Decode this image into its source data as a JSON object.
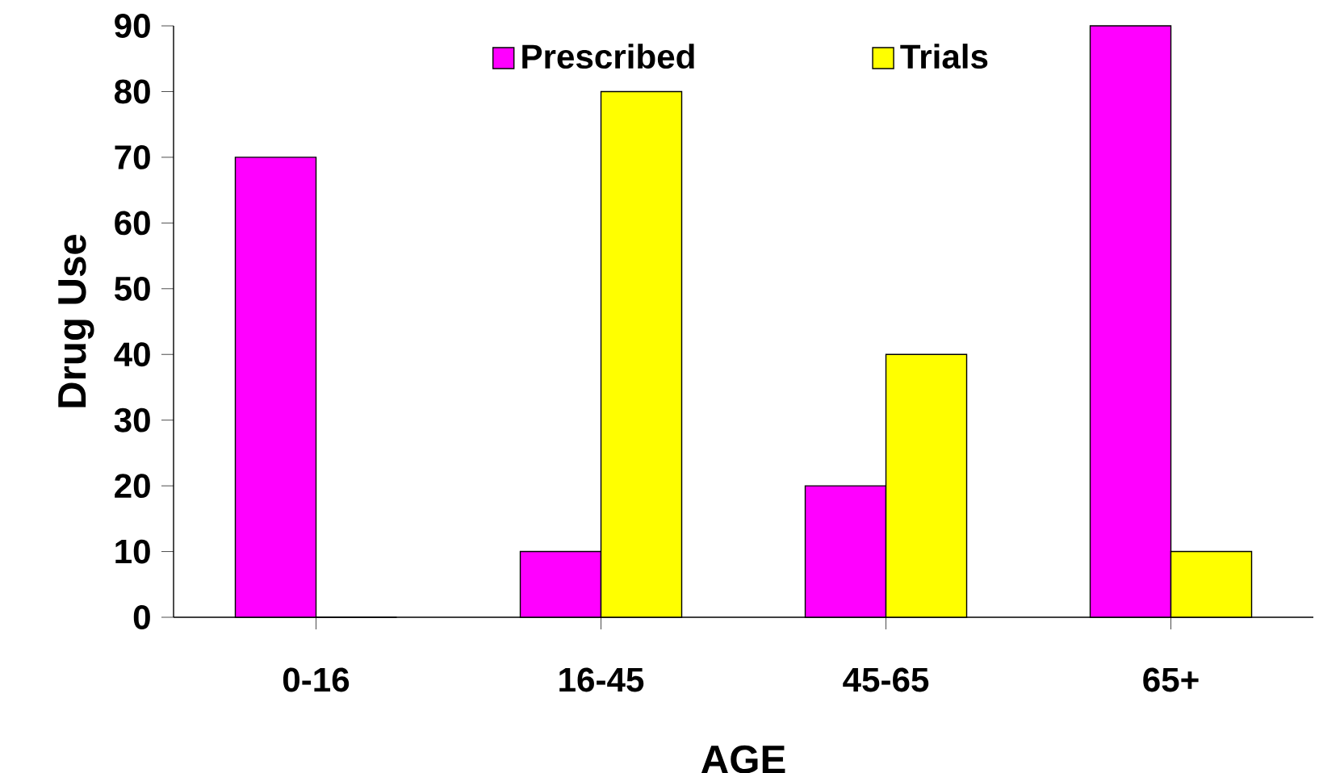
{
  "chart_data": {
    "type": "bar",
    "xlabel": "AGE",
    "ylabel": "Drug Use",
    "categories": [
      "0-16",
      "16-45",
      "45-65",
      "65+"
    ],
    "series": [
      {
        "name": "Prescribed",
        "color": "#ff00ff",
        "values": [
          70,
          10,
          20,
          90
        ]
      },
      {
        "name": "Trials",
        "color": "#ffff00",
        "values": [
          0,
          80,
          40,
          10
        ]
      }
    ],
    "ylim": [
      0,
      90
    ],
    "yticks": [
      0,
      10,
      20,
      30,
      40,
      50,
      60,
      70,
      80,
      90
    ],
    "legend": "top"
  }
}
